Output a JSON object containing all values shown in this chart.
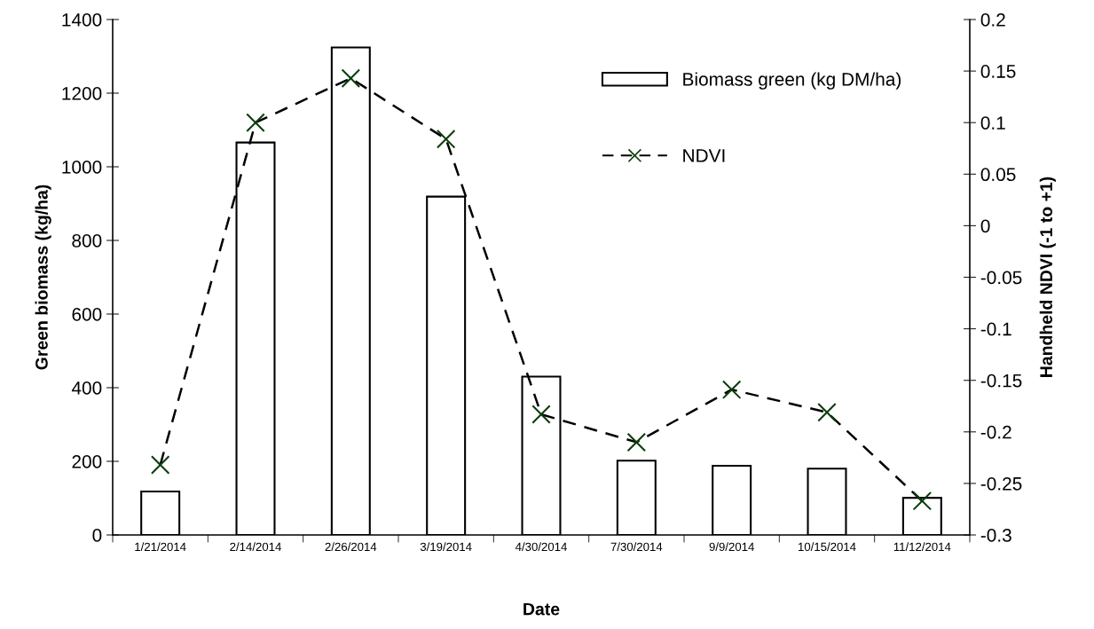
{
  "chart_data": {
    "type": "bar",
    "xlabel": "Date",
    "ylabel": "Green biomass (kg/ha)",
    "y2label": "Handheld NDVI (-1 to +1)",
    "categories": [
      "1/21/2014",
      "2/14/2014",
      "2/26/2014",
      "3/19/2014",
      "4/30/2014",
      "7/30/2014",
      "9/9/2014",
      "10/15/2014",
      "11/12/2014"
    ],
    "series": [
      {
        "name": "Biomass green (kg DM/ha)",
        "color": "#ffffff",
        "values": [
          118,
          1066,
          1324,
          919,
          430,
          202,
          188,
          180,
          101
        ]
      },
      {
        "name": "NDVI",
        "type": "line",
        "axis": "y2",
        "color": "#0b3d0b",
        "marker": "cross",
        "line_style": "dashed",
        "values": [
          -0.232,
          0.1,
          0.143,
          0.084,
          -0.183,
          -0.21,
          -0.159,
          -0.181,
          -0.267
        ]
      }
    ],
    "ylim": [
      0,
      1400
    ],
    "yticks": [
      0,
      200,
      400,
      600,
      800,
      1000,
      1200,
      1400
    ],
    "y2lim": [
      -0.3,
      0.2
    ],
    "y2ticks": [
      -0.3,
      -0.25,
      -0.2,
      -0.15,
      -0.1,
      -0.05,
      0,
      0.05,
      0.1,
      0.15,
      0.2
    ],
    "grid": false,
    "legend": "top right"
  }
}
